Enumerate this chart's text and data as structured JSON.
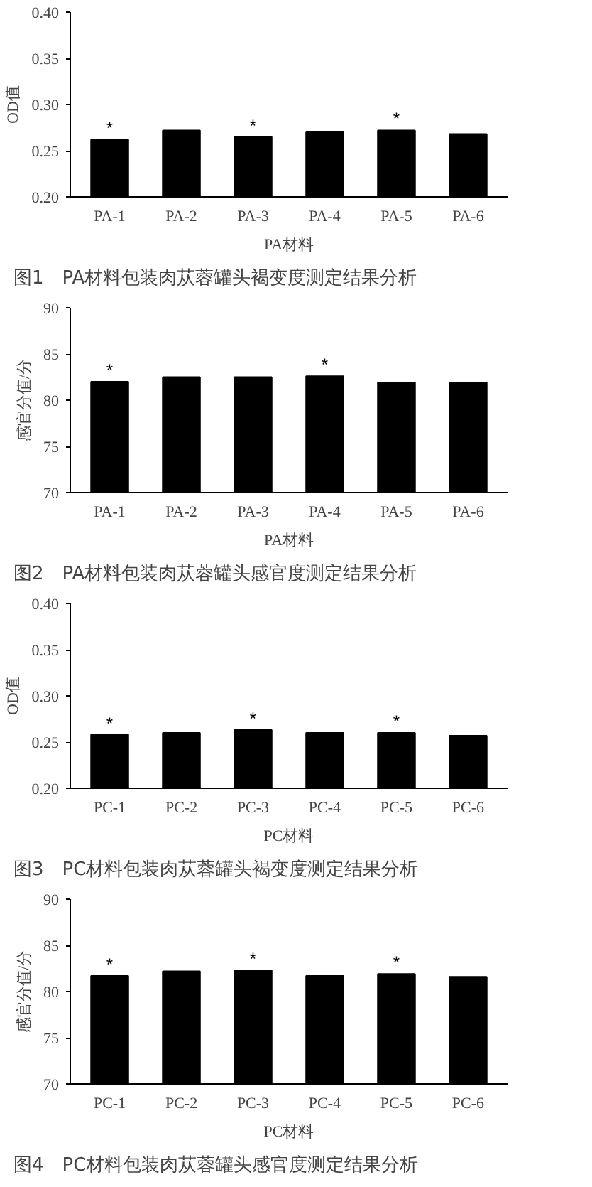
{
  "chart_data": [
    {
      "type": "bar",
      "title": "图1　PA材料包装肉苁蓉罐头褐变度测定结果分析",
      "xlabel": "PA材料",
      "ylabel": "OD值",
      "categories": [
        "PA-1",
        "PA-2",
        "PA-3",
        "PA-4",
        "PA-5",
        "PA-6"
      ],
      "values": [
        0.262,
        0.272,
        0.265,
        0.27,
        0.272,
        0.268
      ],
      "color": "#000000",
      "ylim": [
        0.2,
        0.4
      ],
      "yticks": [
        {
          "value": 0.2,
          "label": "0.20"
        },
        {
          "value": 0.25,
          "label": "0.25"
        },
        {
          "value": 0.3,
          "label": "0.30"
        },
        {
          "value": 0.35,
          "label": "0.35"
        },
        {
          "value": 0.4,
          "label": "0.40"
        }
      ],
      "grid": false,
      "legend": false,
      "annotations": [
        {
          "text": "*",
          "x": "PA-1",
          "y": 0.262
        },
        {
          "text": "*",
          "x": "PA-3",
          "y": 0.265
        },
        {
          "text": "*",
          "x": "PA-5",
          "y": 0.272
        }
      ]
    },
    {
      "type": "bar",
      "title": "图2　PA材料包装肉苁蓉罐头感官度测定结果分析",
      "xlabel": "PA材料",
      "ylabel": "感官分值/分",
      "categories": [
        "PA-1",
        "PA-2",
        "PA-3",
        "PA-4",
        "PA-5",
        "PA-6"
      ],
      "values": [
        82.0,
        82.5,
        82.5,
        82.6,
        81.9,
        81.9
      ],
      "color": "#000000",
      "ylim": [
        70,
        90
      ],
      "yticks": [
        70,
        75,
        80,
        85,
        90
      ],
      "grid": false,
      "legend": false,
      "annotations": [
        {
          "text": "*",
          "x": "PA-1",
          "y": 82.0
        },
        {
          "text": "*",
          "x": "PA-4",
          "y": 82.6
        }
      ]
    },
    {
      "type": "bar",
      "title": "图3　PC材料包装肉苁蓉罐头褐变度测定结果分析",
      "xlabel": "PC材料",
      "ylabel": "OD值",
      "categories": [
        "PC-1",
        "PC-2",
        "PC-3",
        "PC-4",
        "PC-5",
        "PC-6"
      ],
      "values": [
        0.258,
        0.26,
        0.263,
        0.26,
        0.26,
        0.257
      ],
      "color": "#000000",
      "ylim": [
        0.2,
        0.4
      ],
      "yticks": [
        {
          "value": 0.2,
          "label": "0.20"
        },
        {
          "value": 0.25,
          "label": "0.25"
        },
        {
          "value": 0.3,
          "label": "0.30"
        },
        {
          "value": 0.35,
          "label": "0.35"
        },
        {
          "value": 0.4,
          "label": "0.40"
        }
      ],
      "grid": false,
      "legend": false,
      "annotations": [
        {
          "text": "*",
          "x": "PC-1",
          "y": 0.258
        },
        {
          "text": "*",
          "x": "PC-3",
          "y": 0.263
        },
        {
          "text": "*",
          "x": "PC-5",
          "y": 0.26
        }
      ]
    },
    {
      "type": "bar",
      "title": "图4　PC材料包装肉苁蓉罐头感官度测定结果分析",
      "xlabel": "PC材料",
      "ylabel": "感官分值/分",
      "categories": [
        "PC-1",
        "PC-2",
        "PC-3",
        "PC-4",
        "PC-5",
        "PC-6"
      ],
      "values": [
        81.7,
        82.2,
        82.3,
        81.7,
        81.9,
        81.6
      ],
      "color": "#000000",
      "ylim": [
        70,
        90
      ],
      "yticks": [
        70,
        75,
        80,
        85,
        90
      ],
      "grid": false,
      "legend": false,
      "annotations": [
        {
          "text": "*",
          "x": "PC-1",
          "y": 81.7
        },
        {
          "text": "*",
          "x": "PC-3",
          "y": 82.3
        },
        {
          "text": "*",
          "x": "PC-5",
          "y": 81.9
        }
      ]
    }
  ]
}
